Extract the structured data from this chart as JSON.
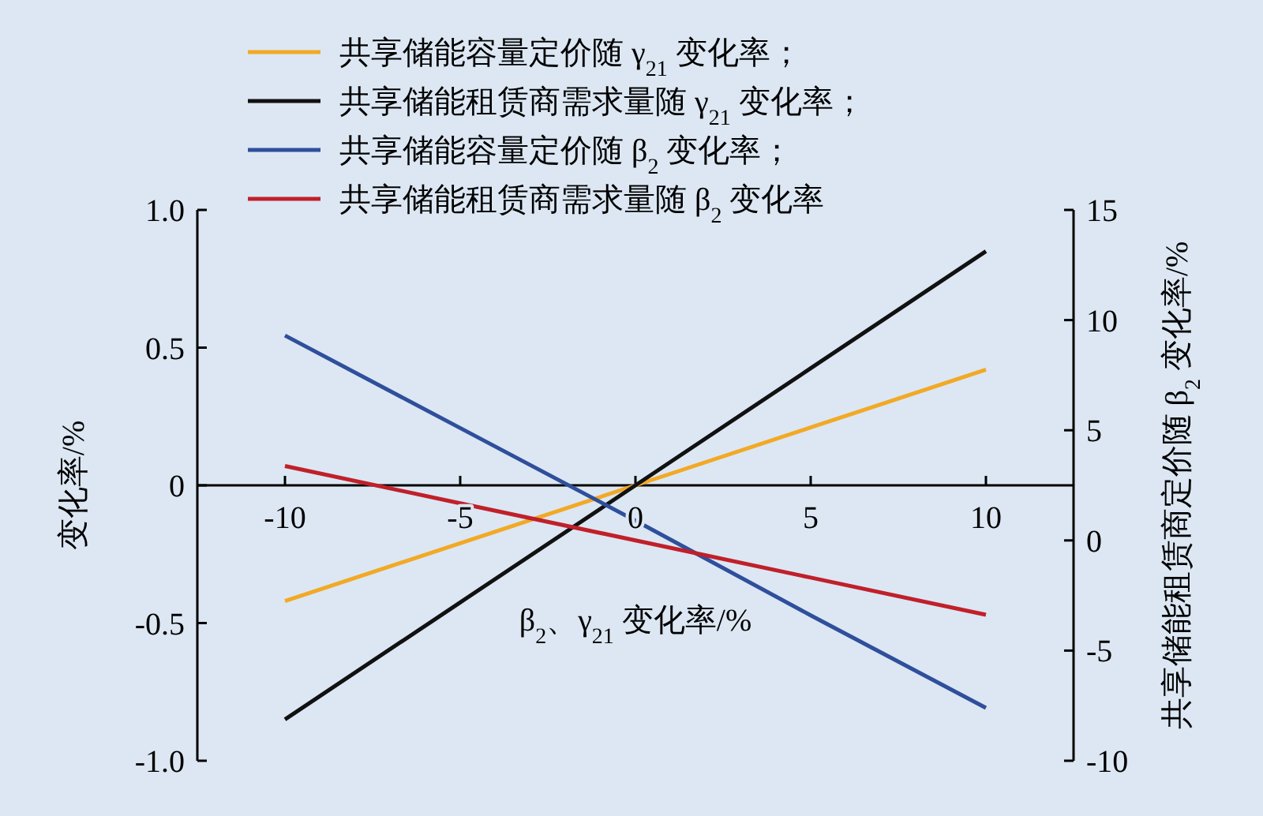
{
  "chart_data": {
    "type": "line",
    "xlabel": "β$_{2}$、γ$_{21}$ 变化率/%",
    "ylabel": "变化率/%",
    "y2label": "共享储能租赁商定价随 β$_{2}$ 变化率/%",
    "x": [
      -10,
      -5,
      0,
      5,
      10
    ],
    "xlim": [
      -12.5,
      12.5
    ],
    "xticks": [
      -10,
      -5,
      0,
      5,
      10
    ],
    "ylim": [
      -1,
      1
    ],
    "yticks": [
      {
        "value": -1,
        "label": "-1.0"
      },
      -0.5,
      0,
      0.5,
      {
        "value": 1,
        "label": "1.0"
      }
    ],
    "y2lim": [
      -10,
      15
    ],
    "y2ticks": [
      -10,
      -5,
      0,
      5,
      10,
      15
    ],
    "legend": "top",
    "grid": false,
    "marker": "none",
    "line_style": "solid",
    "series": [
      {
        "name": "共享储能容量定价随 γ$_{21}$ 变化率；",
        "color": "#f2a925",
        "values": [
          -0.42,
          -0.21,
          0,
          0.21,
          0.42
        ]
      },
      {
        "name": "共享储能租赁商需求量随 γ$_{21}$ 变化率；",
        "color": "#111111",
        "values": [
          -0.85,
          -0.425,
          0,
          0.425,
          0.85
        ]
      },
      {
        "name": "共享储能容量定价随 β$_{2}$ 变化率；",
        "color": "#2f4f9c",
        "axis": "y2",
        "values": [
          9.3,
          5.1,
          0.9,
          -3.4,
          -7.6
        ]
      },
      {
        "name": "共享储能租赁商需求量随 β$_{2}$ 变化率",
        "color": "#c0202a",
        "values": [
          0.07,
          -0.065,
          -0.2,
          -0.335,
          -0.47
        ]
      }
    ]
  }
}
